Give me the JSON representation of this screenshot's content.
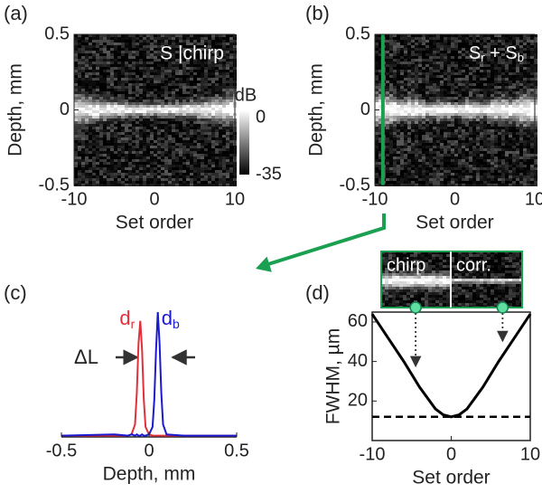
{
  "chart_data": [
    {
      "type": "heatmap",
      "panel_label": "(a)",
      "annotation": "S |chirp",
      "xlabel": "Set order",
      "ylabel": "Depth, mm",
      "xlim": [
        -10,
        10
      ],
      "xticks": [
        -10,
        0,
        10
      ],
      "ylim": [
        -0.5,
        0.5
      ],
      "yticks": [
        -0.5,
        0,
        0.5
      ],
      "colorbar": {
        "label": "dB",
        "lim": [
          -35,
          0
        ],
        "ticks": [
          0,
          -35
        ]
      }
    },
    {
      "type": "heatmap",
      "panel_label": "(b)",
      "annotation_parts": [
        "S",
        "r",
        " + S",
        "b"
      ],
      "xlabel": "Set order",
      "ylabel": "Depth, mm",
      "xlim": [
        -10,
        10
      ],
      "xticks": [
        -10,
        0,
        10
      ],
      "ylim": [
        -0.5,
        0.5
      ],
      "yticks": [
        -0.5,
        0,
        0.5
      ],
      "marker_line": {
        "x": -9,
        "color": "#1aa050"
      }
    },
    {
      "type": "line",
      "panel_label": "(c)",
      "xlabel": "Depth, mm",
      "annotation": "ΔL",
      "xlim": [
        -0.5,
        0.5
      ],
      "xticks": [
        -0.5,
        0,
        0.5
      ],
      "ylim": [
        0,
        1
      ],
      "x": [
        -0.5,
        -0.2,
        -0.12,
        -0.1,
        -0.08,
        -0.07,
        -0.06,
        -0.05,
        -0.04,
        -0.03,
        -0.02,
        0,
        0.02,
        0.03,
        0.04,
        0.05,
        0.06,
        0.07,
        0.08,
        0.1,
        0.2,
        0.5
      ],
      "series": [
        {
          "name": "dr",
          "color": "#e0303a",
          "values": [
            0.01,
            0.01,
            0.01,
            0.02,
            0.1,
            0.35,
            0.75,
            0.93,
            0.7,
            0.3,
            0.08,
            0.02,
            0.01,
            0.01,
            0.01,
            0.01,
            0.01,
            0.01,
            0.01,
            0.01,
            0.01,
            0.01
          ]
        },
        {
          "name": "db",
          "color": "#1a1ad0",
          "values": [
            0.01,
            0.02,
            0.01,
            0.02,
            0.01,
            0.02,
            0.01,
            0.01,
            0.02,
            0.01,
            0.01,
            0.02,
            0.08,
            0.3,
            0.7,
            1,
            0.75,
            0.35,
            0.1,
            0.02,
            0.01,
            0.01
          ]
        }
      ]
    },
    {
      "type": "line",
      "panel_label": "(d)",
      "xlabel": "Set order",
      "ylabel": "FWHM, µm",
      "xlim": [
        -10,
        10
      ],
      "xticks": [
        -10,
        0,
        10
      ],
      "ylim": [
        0,
        65
      ],
      "yticks": [
        20,
        40,
        60
      ],
      "x": [
        -10,
        -8,
        -6,
        -4,
        -2,
        -1,
        0,
        1,
        2,
        4,
        6,
        8,
        10
      ],
      "series": [
        {
          "color": "#000000",
          "values": [
            64,
            52,
            40,
            27,
            16,
            13,
            12,
            13,
            16,
            27,
            40,
            52,
            64
          ]
        }
      ],
      "reference_line": {
        "value": 12,
        "style": "dashed"
      },
      "inset_labels": [
        "chirp",
        "corr."
      ],
      "inset_markers": [
        -4.5,
        6.5
      ]
    }
  ]
}
